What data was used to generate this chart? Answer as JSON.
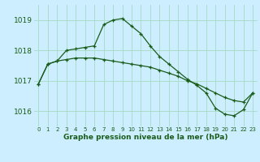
{
  "title": "Graphe pression niveau de la mer (hPa)",
  "bg_color": "#cceeff",
  "grid_color": "#aaddcc",
  "line_color": "#1a5c1a",
  "marker_color": "#1a5c1a",
  "xlim": [
    -0.5,
    23.5
  ],
  "ylim": [
    1015.5,
    1019.5
  ],
  "yticks": [
    1016,
    1017,
    1018,
    1019
  ],
  "xticks": [
    0,
    1,
    2,
    3,
    4,
    5,
    6,
    7,
    8,
    9,
    10,
    11,
    12,
    13,
    14,
    15,
    16,
    17,
    18,
    19,
    20,
    21,
    22,
    23
  ],
  "hours": [
    0,
    1,
    2,
    3,
    4,
    5,
    6,
    7,
    8,
    9,
    10,
    11,
    12,
    13,
    14,
    15,
    16,
    17,
    18,
    19,
    20,
    21,
    22,
    23
  ],
  "line1": [
    1016.9,
    1017.55,
    1017.65,
    1018.0,
    1018.05,
    1018.1,
    1018.15,
    1018.85,
    1019.0,
    1019.05,
    1018.8,
    1018.55,
    1018.15,
    1017.8,
    1017.55,
    1017.3,
    1017.05,
    1016.85,
    1016.6,
    1016.1,
    1015.9,
    1015.85,
    1016.05,
    1016.6
  ],
  "line2": [
    1016.9,
    1017.55,
    1017.65,
    1017.7,
    1017.75,
    1017.75,
    1017.75,
    1017.7,
    1017.65,
    1017.6,
    1017.55,
    1017.5,
    1017.45,
    1017.35,
    1017.25,
    1017.15,
    1017.0,
    1016.9,
    1016.75,
    1016.6,
    1016.45,
    1016.35,
    1016.3,
    1016.6
  ],
  "xlabel_fontsize": 6.5,
  "ytick_fontsize": 6.5,
  "xtick_fontsize": 5.0
}
